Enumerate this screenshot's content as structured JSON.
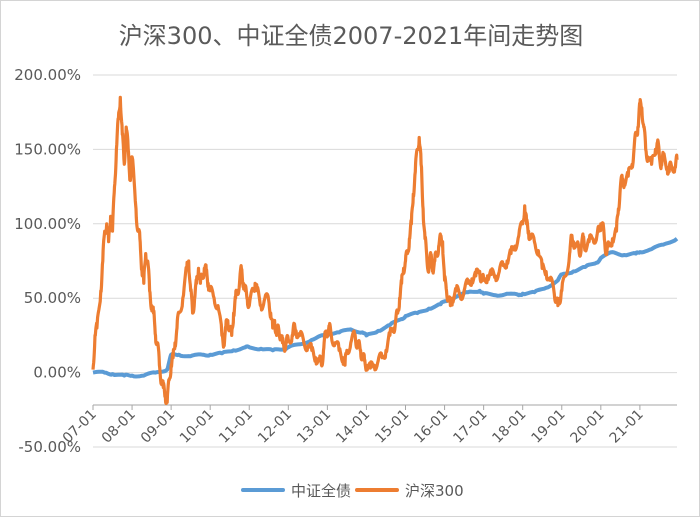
{
  "chart_data": {
    "type": "line",
    "title": "沪深300、中证全债2007-2021年间走势图",
    "xlabel": "",
    "ylabel": "",
    "x_ticks": [
      "07-01",
      "08-01",
      "09-01",
      "10-01",
      "11-01",
      "12-01",
      "13-01",
      "14-01",
      "15-01",
      "16-01",
      "17-01",
      "18-01",
      "19-01",
      "20-01",
      "21-01"
    ],
    "x_range": [
      2007.0,
      2021.95
    ],
    "y_ticks": [
      "200.00%",
      "150.00%",
      "100.00%",
      "50.00%",
      "0.00%",
      "-50.00%"
    ],
    "ylim": [
      -50,
      200
    ],
    "grid": "horizontal",
    "legend_position": "bottom",
    "series": [
      {
        "name": "中证全债",
        "color": "#5b9bd5",
        "points": [
          [
            2007.0,
            0
          ],
          [
            2007.3,
            0
          ],
          [
            2007.5,
            -1
          ],
          [
            2007.8,
            -2
          ],
          [
            2008.0,
            -2
          ],
          [
            2008.3,
            -2
          ],
          [
            2008.6,
            0
          ],
          [
            2008.9,
            2
          ],
          [
            2009.0,
            12
          ],
          [
            2009.2,
            12
          ],
          [
            2009.5,
            11
          ],
          [
            2009.8,
            12
          ],
          [
            2010.0,
            12
          ],
          [
            2010.3,
            13
          ],
          [
            2010.6,
            15
          ],
          [
            2010.9,
            17
          ],
          [
            2011.0,
            17
          ],
          [
            2011.3,
            16
          ],
          [
            2011.6,
            15
          ],
          [
            2011.9,
            16
          ],
          [
            2012.0,
            17
          ],
          [
            2012.3,
            19
          ],
          [
            2012.6,
            22
          ],
          [
            2012.9,
            25
          ],
          [
            2013.0,
            26
          ],
          [
            2013.3,
            27
          ],
          [
            2013.6,
            29
          ],
          [
            2013.9,
            27
          ],
          [
            2014.0,
            25
          ],
          [
            2014.3,
            28
          ],
          [
            2014.6,
            32
          ],
          [
            2014.9,
            36
          ],
          [
            2015.0,
            38
          ],
          [
            2015.3,
            40
          ],
          [
            2015.6,
            43
          ],
          [
            2015.9,
            46
          ],
          [
            2016.0,
            48
          ],
          [
            2016.3,
            51
          ],
          [
            2016.6,
            54
          ],
          [
            2016.9,
            55
          ],
          [
            2017.0,
            53
          ],
          [
            2017.3,
            52
          ],
          [
            2017.6,
            53
          ],
          [
            2017.9,
            52
          ],
          [
            2018.0,
            53
          ],
          [
            2018.3,
            54
          ],
          [
            2018.6,
            57
          ],
          [
            2018.9,
            62
          ],
          [
            2019.0,
            66
          ],
          [
            2019.3,
            68
          ],
          [
            2019.6,
            71
          ],
          [
            2019.9,
            74
          ],
          [
            2020.0,
            77
          ],
          [
            2020.3,
            81
          ],
          [
            2020.6,
            79
          ],
          [
            2020.9,
            80
          ],
          [
            2021.0,
            81
          ],
          [
            2021.3,
            83
          ],
          [
            2021.6,
            86
          ],
          [
            2021.95,
            90
          ]
        ]
      },
      {
        "name": "沪深300",
        "color": "#ed7d31",
        "points": [
          [
            2007.0,
            2
          ],
          [
            2007.05,
            25
          ],
          [
            2007.1,
            30
          ],
          [
            2007.2,
            55
          ],
          [
            2007.25,
            75
          ],
          [
            2007.3,
            95
          ],
          [
            2007.35,
            100
          ],
          [
            2007.4,
            88
          ],
          [
            2007.45,
            105
          ],
          [
            2007.5,
            95
          ],
          [
            2007.55,
            125
          ],
          [
            2007.6,
            150
          ],
          [
            2007.65,
            170
          ],
          [
            2007.7,
            185
          ],
          [
            2007.75,
            160
          ],
          [
            2007.8,
            140
          ],
          [
            2007.85,
            165
          ],
          [
            2007.9,
            150
          ],
          [
            2007.95,
            130
          ],
          [
            2008.0,
            145
          ],
          [
            2008.1,
            110
          ],
          [
            2008.15,
            95
          ],
          [
            2008.2,
            90
          ],
          [
            2008.25,
            70
          ],
          [
            2008.3,
            60
          ],
          [
            2008.35,
            80
          ],
          [
            2008.4,
            75
          ],
          [
            2008.45,
            55
          ],
          [
            2008.5,
            45
          ],
          [
            2008.55,
            40
          ],
          [
            2008.6,
            25
          ],
          [
            2008.65,
            20
          ],
          [
            2008.7,
            5
          ],
          [
            2008.75,
            -5
          ],
          [
            2008.8,
            -10
          ],
          [
            2008.85,
            -15
          ],
          [
            2008.9,
            -20
          ],
          [
            2008.95,
            -5
          ],
          [
            2009.0,
            5
          ],
          [
            2009.05,
            10
          ],
          [
            2009.1,
            20
          ],
          [
            2009.15,
            30
          ],
          [
            2009.2,
            40
          ],
          [
            2009.3,
            50
          ],
          [
            2009.4,
            70
          ],
          [
            2009.45,
            75
          ],
          [
            2009.5,
            55
          ],
          [
            2009.55,
            40
          ],
          [
            2009.6,
            50
          ],
          [
            2009.65,
            60
          ],
          [
            2009.7,
            70
          ],
          [
            2009.75,
            60
          ],
          [
            2009.8,
            65
          ],
          [
            2009.85,
            70
          ],
          [
            2009.9,
            68
          ],
          [
            2009.95,
            60
          ],
          [
            2010.0,
            55
          ],
          [
            2010.1,
            50
          ],
          [
            2010.2,
            45
          ],
          [
            2010.3,
            25
          ],
          [
            2010.35,
            20
          ],
          [
            2010.4,
            30
          ],
          [
            2010.45,
            35
          ],
          [
            2010.5,
            30
          ],
          [
            2010.55,
            25
          ],
          [
            2010.6,
            40
          ],
          [
            2010.65,
            50
          ],
          [
            2010.7,
            55
          ],
          [
            2010.75,
            60
          ],
          [
            2010.8,
            70
          ],
          [
            2010.85,
            60
          ],
          [
            2010.9,
            55
          ],
          [
            2010.95,
            50
          ],
          [
            2011.0,
            45
          ],
          [
            2011.1,
            55
          ],
          [
            2011.15,
            60
          ],
          [
            2011.2,
            55
          ],
          [
            2011.3,
            45
          ],
          [
            2011.4,
            50
          ],
          [
            2011.5,
            48
          ],
          [
            2011.55,
            40
          ],
          [
            2011.6,
            30
          ],
          [
            2011.65,
            35
          ],
          [
            2011.7,
            25
          ],
          [
            2011.75,
            30
          ],
          [
            2011.8,
            25
          ],
          [
            2011.85,
            20
          ],
          [
            2011.9,
            18
          ],
          [
            2011.95,
            20
          ],
          [
            2012.0,
            22
          ],
          [
            2012.1,
            25
          ],
          [
            2012.15,
            30
          ],
          [
            2012.2,
            28
          ],
          [
            2012.3,
            25
          ],
          [
            2012.4,
            20
          ],
          [
            2012.5,
            18
          ],
          [
            2012.6,
            15
          ],
          [
            2012.7,
            10
          ],
          [
            2012.8,
            8
          ],
          [
            2012.85,
            5
          ],
          [
            2012.9,
            15
          ],
          [
            2012.95,
            25
          ],
          [
            2013.0,
            28
          ],
          [
            2013.05,
            30
          ],
          [
            2013.1,
            25
          ],
          [
            2013.2,
            20
          ],
          [
            2013.3,
            15
          ],
          [
            2013.4,
            10
          ],
          [
            2013.45,
            5
          ],
          [
            2013.5,
            15
          ],
          [
            2013.6,
            20
          ],
          [
            2013.7,
            25
          ],
          [
            2013.75,
            20
          ],
          [
            2013.8,
            18
          ],
          [
            2013.85,
            15
          ],
          [
            2013.9,
            10
          ],
          [
            2013.95,
            8
          ],
          [
            2014.0,
            5
          ],
          [
            2014.1,
            3
          ],
          [
            2014.2,
            5
          ],
          [
            2014.3,
            8
          ],
          [
            2014.4,
            10
          ],
          [
            2014.5,
            15
          ],
          [
            2014.6,
            25
          ],
          [
            2014.7,
            30
          ],
          [
            2014.75,
            35
          ],
          [
            2014.8,
            40
          ],
          [
            2014.85,
            50
          ],
          [
            2014.9,
            60
          ],
          [
            2014.95,
            70
          ],
          [
            2015.0,
            75
          ],
          [
            2015.05,
            80
          ],
          [
            2015.1,
            90
          ],
          [
            2015.15,
            100
          ],
          [
            2015.2,
            120
          ],
          [
            2015.25,
            135
          ],
          [
            2015.3,
            150
          ],
          [
            2015.35,
            158
          ],
          [
            2015.4,
            140
          ],
          [
            2015.45,
            110
          ],
          [
            2015.5,
            90
          ],
          [
            2015.55,
            75
          ],
          [
            2015.6,
            70
          ],
          [
            2015.65,
            78
          ],
          [
            2015.7,
            70
          ],
          [
            2015.75,
            75
          ],
          [
            2015.8,
            80
          ],
          [
            2015.85,
            85
          ],
          [
            2015.9,
            90
          ],
          [
            2015.95,
            88
          ],
          [
            2016.0,
            62
          ],
          [
            2016.05,
            55
          ],
          [
            2016.1,
            50
          ],
          [
            2016.15,
            45
          ],
          [
            2016.2,
            50
          ],
          [
            2016.3,
            55
          ],
          [
            2016.4,
            52
          ],
          [
            2016.5,
            55
          ],
          [
            2016.6,
            60
          ],
          [
            2016.7,
            63
          ],
          [
            2016.8,
            65
          ],
          [
            2016.9,
            68
          ],
          [
            2016.95,
            62
          ],
          [
            2017.0,
            62
          ],
          [
            2017.1,
            65
          ],
          [
            2017.2,
            66
          ],
          [
            2017.3,
            65
          ],
          [
            2017.4,
            68
          ],
          [
            2017.5,
            72
          ],
          [
            2017.6,
            75
          ],
          [
            2017.7,
            80
          ],
          [
            2017.8,
            85
          ],
          [
            2017.9,
            92
          ],
          [
            2018.0,
            100
          ],
          [
            2018.05,
            112
          ],
          [
            2018.1,
            100
          ],
          [
            2018.15,
            95
          ],
          [
            2018.2,
            90
          ],
          [
            2018.3,
            88
          ],
          [
            2018.4,
            82
          ],
          [
            2018.5,
            70
          ],
          [
            2018.6,
            68
          ],
          [
            2018.7,
            62
          ],
          [
            2018.8,
            55
          ],
          [
            2018.85,
            50
          ],
          [
            2018.9,
            45
          ],
          [
            2018.95,
            50
          ],
          [
            2019.0,
            55
          ],
          [
            2019.1,
            65
          ],
          [
            2019.2,
            80
          ],
          [
            2019.25,
            90
          ],
          [
            2019.3,
            88
          ],
          [
            2019.4,
            85
          ],
          [
            2019.45,
            80
          ],
          [
            2019.5,
            85
          ],
          [
            2019.55,
            90
          ],
          [
            2019.6,
            85
          ],
          [
            2019.7,
            88
          ],
          [
            2019.8,
            90
          ],
          [
            2019.9,
            92
          ],
          [
            2019.95,
            95
          ],
          [
            2020.0,
            100
          ],
          [
            2020.05,
            98
          ],
          [
            2020.1,
            88
          ],
          [
            2020.15,
            80
          ],
          [
            2020.2,
            85
          ],
          [
            2020.3,
            90
          ],
          [
            2020.4,
            95
          ],
          [
            2020.45,
            110
          ],
          [
            2020.5,
            125
          ],
          [
            2020.55,
            130
          ],
          [
            2020.6,
            128
          ],
          [
            2020.7,
            132
          ],
          [
            2020.8,
            140
          ],
          [
            2020.85,
            150
          ],
          [
            2020.9,
            160
          ],
          [
            2020.95,
            165
          ],
          [
            2021.0,
            180
          ],
          [
            2021.05,
            178
          ],
          [
            2021.1,
            165
          ],
          [
            2021.15,
            150
          ],
          [
            2021.2,
            145
          ],
          [
            2021.3,
            140
          ],
          [
            2021.4,
            150
          ],
          [
            2021.45,
            155
          ],
          [
            2021.5,
            145
          ],
          [
            2021.55,
            140
          ],
          [
            2021.6,
            145
          ],
          [
            2021.7,
            138
          ],
          [
            2021.75,
            135
          ],
          [
            2021.8,
            140
          ],
          [
            2021.9,
            138
          ],
          [
            2021.95,
            143
          ]
        ]
      }
    ]
  }
}
